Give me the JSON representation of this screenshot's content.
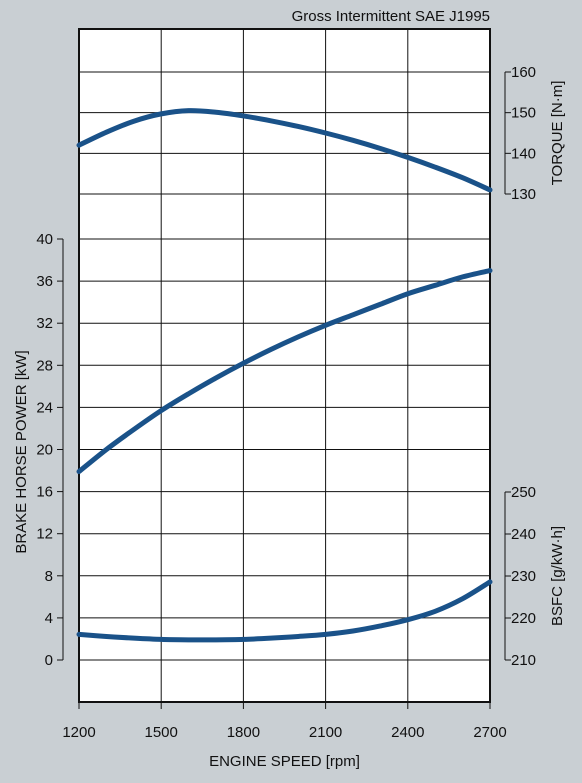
{
  "chart_data": {
    "type": "line",
    "title": "Gross Intermittent SAE J1995",
    "xlabel": "ENGINE SPEED [rpm]",
    "x_ticks": [
      "1200",
      "1500",
      "1800",
      "2100",
      "2400",
      "2700"
    ],
    "xlim": [
      1200,
      2700
    ],
    "grid": true,
    "line_color": "#1a5289",
    "axes": {
      "power": {
        "label": "BRAKE HORSE POWER [kW]",
        "side": "left",
        "ticks": [
          "0",
          "4",
          "8",
          "12",
          "16",
          "20",
          "24",
          "28",
          "32",
          "36",
          "40"
        ]
      },
      "torque": {
        "label": "TORQUE [N·m]",
        "side": "right",
        "ticks": [
          "130",
          "140",
          "150",
          "160"
        ]
      },
      "bsfc": {
        "label": "BSFC [g/kW·h]",
        "side": "right",
        "ticks": [
          "210",
          "220",
          "230",
          "240",
          "250"
        ]
      }
    },
    "series": [
      {
        "axis": "torque",
        "x": [
          1200,
          1300,
          1400,
          1500,
          1600,
          1700,
          1800,
          1900,
          2000,
          2100,
          2200,
          2300,
          2400,
          2500,
          2600,
          2700
        ],
        "values": [
          142,
          145.2,
          147.9,
          149.7,
          150.5,
          150.1,
          149.2,
          148,
          146.6,
          145,
          143.2,
          141.2,
          139,
          136.6,
          134,
          131
        ]
      },
      {
        "axis": "power",
        "x": [
          1200,
          1300,
          1400,
          1500,
          1600,
          1700,
          1800,
          1900,
          2000,
          2100,
          2200,
          2300,
          2400,
          2500,
          2600,
          2700
        ],
        "values": [
          17.9,
          20,
          21.9,
          23.7,
          25.3,
          26.8,
          28.2,
          29.5,
          30.7,
          31.8,
          32.8,
          33.8,
          34.8,
          35.6,
          36.4,
          37
        ]
      },
      {
        "axis": "bsfc",
        "x": [
          1200,
          1300,
          1400,
          1500,
          1600,
          1700,
          1800,
          1900,
          2000,
          2100,
          2200,
          2300,
          2400,
          2500,
          2600,
          2700
        ],
        "values": [
          216.1,
          215.6,
          215.2,
          214.9,
          214.8,
          214.8,
          214.9,
          215.2,
          215.6,
          216.1,
          216.9,
          218.1,
          219.6,
          221.6,
          224.6,
          228.6
        ]
      }
    ]
  }
}
